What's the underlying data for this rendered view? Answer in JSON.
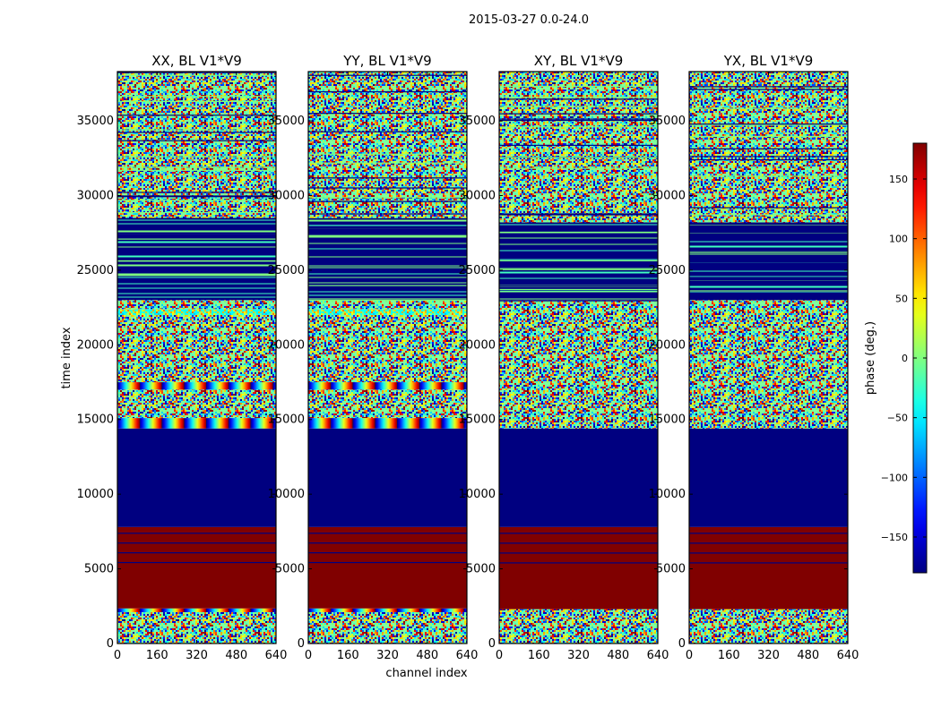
{
  "suptitle": "2015-03-27 0.0-24.0",
  "xlabel": "channel index",
  "ylabel": "time index",
  "colorbar": {
    "label": "phase (deg.)",
    "ticks": [
      -150,
      -100,
      -50,
      0,
      50,
      100,
      150
    ],
    "tick_labels": [
      "−150",
      "−100",
      "−50",
      "0",
      "50",
      "100",
      "150"
    ],
    "min": -180,
    "max": 180,
    "colormap": "jet"
  },
  "chart_data": {
    "type": "heatmap",
    "title": "2015-03-27 0.0-24.0",
    "xlabel": "channel index",
    "ylabel": "time index",
    "xlim": [
      0,
      640
    ],
    "ylim": [
      0,
      38300
    ],
    "x_ticks": [
      0,
      160,
      320,
      480,
      640
    ],
    "x_tick_labels": [
      "0",
      "160",
      "320",
      "480",
      "640"
    ],
    "y_ticks": [
      0,
      5000,
      10000,
      15000,
      20000,
      25000,
      30000,
      35000
    ],
    "y_tick_labels": [
      "0",
      "5000",
      "10000",
      "15000",
      "20000",
      "25000",
      "30000",
      "35000"
    ],
    "value_unit": "phase (deg.)",
    "value_range": [
      -180,
      180
    ],
    "panels": [
      {
        "title": "XX, BL V1*V9",
        "segments": [
          {
            "from": 0,
            "to": 2100,
            "pattern": "noise"
          },
          {
            "from": 2100,
            "to": 2350,
            "pattern": "wave"
          },
          {
            "from": 2350,
            "to": 7800,
            "pattern": "solid",
            "phase": 180
          },
          {
            "from": 7800,
            "to": 14400,
            "pattern": "solid",
            "phase": -180
          },
          {
            "from": 14400,
            "to": 15100,
            "pattern": "wave"
          },
          {
            "from": 15100,
            "to": 17000,
            "pattern": "noise"
          },
          {
            "from": 17000,
            "to": 17500,
            "pattern": "wave"
          },
          {
            "from": 17500,
            "to": 22000,
            "pattern": "noise"
          },
          {
            "from": 22000,
            "to": 22400,
            "pattern": "mixed"
          },
          {
            "from": 22400,
            "to": 23000,
            "pattern": "noise"
          },
          {
            "from": 23000,
            "to": 28500,
            "pattern": "blocked"
          },
          {
            "from": 28500,
            "to": 38300,
            "pattern": "noise"
          }
        ]
      },
      {
        "title": "YY, BL V1*V9",
        "segments": [
          {
            "from": 0,
            "to": 2100,
            "pattern": "noise"
          },
          {
            "from": 2100,
            "to": 2350,
            "pattern": "wave"
          },
          {
            "from": 2350,
            "to": 7800,
            "pattern": "solid",
            "phase": 180
          },
          {
            "from": 7800,
            "to": 14400,
            "pattern": "solid",
            "phase": -180
          },
          {
            "from": 14400,
            "to": 15100,
            "pattern": "wave"
          },
          {
            "from": 15100,
            "to": 17000,
            "pattern": "noise"
          },
          {
            "from": 17000,
            "to": 17500,
            "pattern": "wave"
          },
          {
            "from": 17500,
            "to": 22000,
            "pattern": "noise"
          },
          {
            "from": 22000,
            "to": 22400,
            "pattern": "mixed"
          },
          {
            "from": 22400,
            "to": 23000,
            "pattern": "noise"
          },
          {
            "from": 23000,
            "to": 28500,
            "pattern": "blocked"
          },
          {
            "from": 28500,
            "to": 38300,
            "pattern": "noise"
          }
        ]
      },
      {
        "title": "XY, BL V1*V9",
        "segments": [
          {
            "from": 0,
            "to": 2300,
            "pattern": "noise"
          },
          {
            "from": 2300,
            "to": 7800,
            "pattern": "solid",
            "phase": 180
          },
          {
            "from": 7800,
            "to": 14400,
            "pattern": "solid",
            "phase": -180
          },
          {
            "from": 14400,
            "to": 23000,
            "pattern": "noise"
          },
          {
            "from": 23000,
            "to": 28200,
            "pattern": "blocked"
          },
          {
            "from": 28200,
            "to": 38300,
            "pattern": "noise"
          }
        ]
      },
      {
        "title": "YX, BL V1*V9",
        "segments": [
          {
            "from": 0,
            "to": 2300,
            "pattern": "noise"
          },
          {
            "from": 2300,
            "to": 7800,
            "pattern": "solid",
            "phase": 180
          },
          {
            "from": 7800,
            "to": 14400,
            "pattern": "solid",
            "phase": -180
          },
          {
            "from": 14400,
            "to": 23000,
            "pattern": "noise"
          },
          {
            "from": 23000,
            "to": 28200,
            "pattern": "blocked"
          },
          {
            "from": 28200,
            "to": 38300,
            "pattern": "noise"
          }
        ]
      }
    ]
  }
}
